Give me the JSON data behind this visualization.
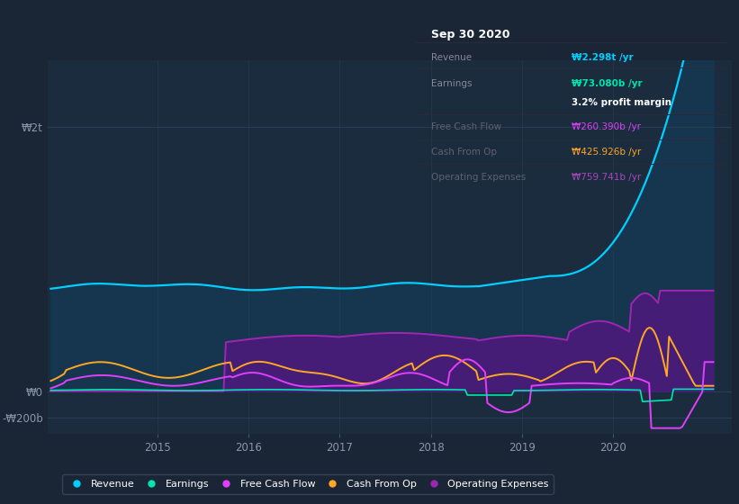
{
  "bg_color": "#1a2535",
  "plot_bg_color": "#1a2c3e",
  "info_box_bg": "#0a0f18",
  "info_box_title": "Sep 30 2020",
  "info_rows": [
    {
      "label": "Revenue",
      "value": "₩2.298t /yr",
      "val_color": "#00cfff",
      "dim": false
    },
    {
      "label": "Earnings",
      "value": "₩73.080b /yr",
      "val_color": "#00e5b0",
      "dim": false
    },
    {
      "label": "",
      "value": "3.2% profit margin",
      "val_color": "#ffffff",
      "dim": false
    },
    {
      "label": "Free Cash Flow",
      "value": "₩260.390b /yr",
      "val_color": "#e040fb",
      "dim": true
    },
    {
      "label": "Cash From Op",
      "value": "₩425.926b /yr",
      "val_color": "#ffa726",
      "dim": true
    },
    {
      "label": "Operating Expenses",
      "value": "₩759.741b /yr",
      "val_color": "#ab47bc",
      "dim": true
    }
  ],
  "ytick_labels": [
    "₩2t",
    "₩0",
    "-₩200b"
  ],
  "ytick_values": [
    2000,
    0,
    -200
  ],
  "ylim": [
    -320,
    2500
  ],
  "xlim_start": 2013.8,
  "xlim_end": 2021.3,
  "xtick_labels": [
    "2015",
    "2016",
    "2017",
    "2018",
    "2019",
    "2020"
  ],
  "xtick_positions": [
    2015,
    2016,
    2017,
    2018,
    2019,
    2020
  ],
  "rev_color": "#00cfff",
  "rev_fill": "#163650",
  "earn_color": "#00e5b0",
  "fcf_color": "#e040fb",
  "cop_color": "#ffa726",
  "opex_color": "#9c27b0",
  "opex_fill": "#4a1a7a",
  "legend_labels": [
    "Revenue",
    "Earnings",
    "Free Cash Flow",
    "Cash From Op",
    "Operating Expenses"
  ],
  "legend_colors": [
    "#00cfff",
    "#00e5b0",
    "#e040fb",
    "#ffa726",
    "#9c27b0"
  ]
}
